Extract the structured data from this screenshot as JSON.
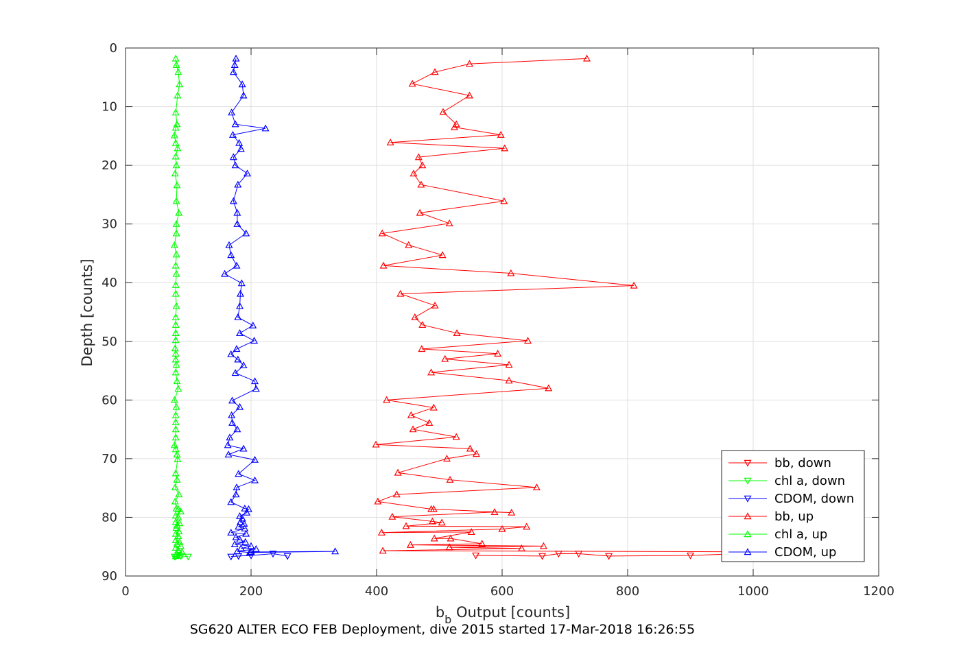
{
  "chart_data": {
    "type": "line",
    "caption": "SG620 ALTER ECO FEB Deployment, dive 2015 started 17-Mar-2018 16:26:55",
    "xlabel_main": "b",
    "xlabel_sub": "b",
    "xlabel_rest": " Output [counts]",
    "ylabel": "Depth [counts]",
    "xlim": [
      0,
      1200
    ],
    "ylim": [
      0,
      90
    ],
    "y_reversed": true,
    "grid": true,
    "legend_position": "bottom-right",
    "xticks": [
      "0",
      "200",
      "400",
      "600",
      "800",
      "1000",
      "1200"
    ],
    "yticks": [
      "0",
      "10",
      "20",
      "30",
      "40",
      "50",
      "60",
      "70",
      "80",
      "90"
    ],
    "series": [
      {
        "name": "bb, down",
        "color": "#ff0000",
        "marker": "triangle-down",
        "points": [
          [
            1050,
            85.9
          ],
          [
            900,
            86.5
          ],
          [
            770,
            86.6
          ],
          [
            722,
            86.2
          ],
          [
            690,
            86.2
          ],
          [
            664,
            86.6
          ],
          [
            558,
            86.5
          ]
        ]
      },
      {
        "name": "chl a, down",
        "color": "#00ff00",
        "marker": "triangle-down",
        "points": [
          [
            100,
            86.7
          ],
          [
            88,
            86.6
          ],
          [
            84,
            86.4
          ],
          [
            80,
            86.7
          ],
          [
            78,
            86.7
          ]
        ]
      },
      {
        "name": "CDOM, down",
        "color": "#0000ff",
        "marker": "triangle-down",
        "points": [
          [
            258,
            86.6
          ],
          [
            235,
            86.2
          ],
          [
            200,
            86.5
          ],
          [
            180,
            86.6
          ],
          [
            168,
            86.7
          ]
        ]
      },
      {
        "name": "bb, up",
        "color": "#ff0000",
        "marker": "triangle-up",
        "points": [
          [
            735,
            1.8
          ],
          [
            548,
            2.7
          ],
          [
            493,
            4.1
          ],
          [
            457,
            6.1
          ],
          [
            548,
            8.1
          ],
          [
            506,
            10.9
          ],
          [
            527,
            13.0
          ],
          [
            524,
            13.5
          ],
          [
            598,
            14.8
          ],
          [
            422,
            16.1
          ],
          [
            604,
            17.1
          ],
          [
            467,
            18.6
          ],
          [
            473,
            20.0
          ],
          [
            459,
            21.4
          ],
          [
            471,
            23.3
          ],
          [
            603,
            26.1
          ],
          [
            469,
            28.1
          ],
          [
            516,
            29.9
          ],
          [
            409,
            31.6
          ],
          [
            451,
            33.6
          ],
          [
            505,
            35.3
          ],
          [
            411,
            37.1
          ],
          [
            614,
            38.4
          ],
          [
            810,
            40.5
          ],
          [
            438,
            41.9
          ],
          [
            493,
            43.9
          ],
          [
            461,
            45.9
          ],
          [
            473,
            47.2
          ],
          [
            528,
            48.6
          ],
          [
            641,
            49.9
          ],
          [
            472,
            51.3
          ],
          [
            593,
            52.1
          ],
          [
            509,
            53.0
          ],
          [
            611,
            54.0
          ],
          [
            487,
            55.3
          ],
          [
            611,
            56.7
          ],
          [
            674,
            58.0
          ],
          [
            416,
            60.0
          ],
          [
            491,
            61.3
          ],
          [
            455,
            62.6
          ],
          [
            484,
            63.9
          ],
          [
            458,
            65.0
          ],
          [
            527,
            66.3
          ],
          [
            399,
            67.6
          ],
          [
            549,
            68.3
          ],
          [
            559,
            69.2
          ],
          [
            512,
            70.0
          ],
          [
            434,
            72.4
          ],
          [
            517,
            73.6
          ],
          [
            655,
            74.9
          ],
          [
            432,
            76.1
          ],
          [
            402,
            77.3
          ],
          [
            487,
            78.6
          ],
          [
            491,
            78.6
          ],
          [
            615,
            79.2
          ],
          [
            588,
            79.1
          ],
          [
            425,
            79.9
          ],
          [
            489,
            80.7
          ],
          [
            504,
            80.9
          ],
          [
            447,
            81.5
          ],
          [
            639,
            81.6
          ],
          [
            600,
            82.0
          ],
          [
            408,
            82.6
          ],
          [
            551,
            82.5
          ],
          [
            492,
            83.6
          ],
          [
            518,
            83.6
          ],
          [
            568,
            84.5
          ],
          [
            454,
            84.7
          ],
          [
            666,
            84.9
          ],
          [
            516,
            85.1
          ],
          [
            631,
            85.3
          ],
          [
            410,
            85.7
          ],
          [
            1050,
            85.9
          ]
        ]
      },
      {
        "name": "chl a, up",
        "color": "#00ff00",
        "marker": "triangle-up",
        "points": [
          [
            80,
            1.8
          ],
          [
            81,
            2.9
          ],
          [
            84,
            4.1
          ],
          [
            86,
            6.2
          ],
          [
            83,
            8.1
          ],
          [
            80,
            11.0
          ],
          [
            82,
            13.0
          ],
          [
            80,
            13.6
          ],
          [
            78,
            14.9
          ],
          [
            80,
            16.2
          ],
          [
            83,
            17.1
          ],
          [
            80,
            18.5
          ],
          [
            81,
            20.0
          ],
          [
            79,
            21.4
          ],
          [
            82,
            23.4
          ],
          [
            81,
            26.1
          ],
          [
            85,
            28.1
          ],
          [
            81,
            30.0
          ],
          [
            81,
            31.6
          ],
          [
            78,
            33.6
          ],
          [
            81,
            35.2
          ],
          [
            80,
            37.1
          ],
          [
            81,
            38.5
          ],
          [
            80,
            40.4
          ],
          [
            80,
            41.9
          ],
          [
            81,
            44.0
          ],
          [
            80,
            45.9
          ],
          [
            80,
            47.2
          ],
          [
            80,
            48.6
          ],
          [
            80,
            49.8
          ],
          [
            79,
            51.2
          ],
          [
            80,
            52.1
          ],
          [
            80,
            53.1
          ],
          [
            81,
            54.0
          ],
          [
            80,
            55.3
          ],
          [
            82,
            56.8
          ],
          [
            84,
            58.1
          ],
          [
            78,
            60.0
          ],
          [
            81,
            61.2
          ],
          [
            80,
            62.6
          ],
          [
            80,
            63.8
          ],
          [
            80,
            65.0
          ],
          [
            80,
            66.4
          ],
          [
            78,
            67.7
          ],
          [
            80,
            68.4
          ],
          [
            82,
            69.3
          ],
          [
            83,
            70.1
          ],
          [
            80,
            72.5
          ],
          [
            82,
            73.6
          ],
          [
            79,
            74.9
          ],
          [
            85,
            76.1
          ],
          [
            79,
            77.3
          ],
          [
            81,
            78.5
          ],
          [
            84,
            78.6
          ],
          [
            88,
            79.0
          ],
          [
            80,
            79.7
          ],
          [
            84,
            80.0
          ],
          [
            80,
            80.8
          ],
          [
            86,
            81.0
          ],
          [
            82,
            81.4
          ],
          [
            81,
            81.8
          ],
          [
            85,
            82.4
          ],
          [
            80,
            82.8
          ],
          [
            84,
            83.2
          ],
          [
            80,
            83.9
          ],
          [
            86,
            84.2
          ],
          [
            82,
            84.5
          ],
          [
            88,
            84.9
          ],
          [
            80,
            85.2
          ],
          [
            84,
            85.6
          ],
          [
            90,
            85.9
          ],
          [
            82,
            86.2
          ],
          [
            86,
            86.5
          ],
          [
            80,
            86.6
          ]
        ]
      },
      {
        "name": "CDOM, up",
        "color": "#0000ff",
        "marker": "triangle-up",
        "points": [
          [
            176,
            1.8
          ],
          [
            174,
            2.9
          ],
          [
            172,
            4.1
          ],
          [
            186,
            6.2
          ],
          [
            188,
            8.1
          ],
          [
            169,
            11.0
          ],
          [
            175,
            13.0
          ],
          [
            223,
            13.7
          ],
          [
            171,
            14.8
          ],
          [
            181,
            16.2
          ],
          [
            184,
            17.2
          ],
          [
            172,
            18.6
          ],
          [
            175,
            20.0
          ],
          [
            194,
            21.4
          ],
          [
            179,
            23.3
          ],
          [
            172,
            26.1
          ],
          [
            178,
            28.1
          ],
          [
            178,
            30.0
          ],
          [
            192,
            31.6
          ],
          [
            165,
            33.6
          ],
          [
            168,
            35.3
          ],
          [
            177,
            37.1
          ],
          [
            158,
            38.5
          ],
          [
            185,
            40.1
          ],
          [
            183,
            41.9
          ],
          [
            182,
            44.0
          ],
          [
            179,
            45.9
          ],
          [
            203,
            47.3
          ],
          [
            182,
            48.6
          ],
          [
            205,
            49.9
          ],
          [
            177,
            51.3
          ],
          [
            168,
            52.2
          ],
          [
            179,
            53.1
          ],
          [
            188,
            54.1
          ],
          [
            175,
            55.4
          ],
          [
            206,
            56.8
          ],
          [
            208,
            58.1
          ],
          [
            170,
            60.1
          ],
          [
            182,
            61.2
          ],
          [
            169,
            62.6
          ],
          [
            170,
            63.9
          ],
          [
            178,
            65.0
          ],
          [
            166,
            66.4
          ],
          [
            163,
            67.7
          ],
          [
            188,
            68.3
          ],
          [
            164,
            69.3
          ],
          [
            206,
            70.2
          ],
          [
            180,
            72.6
          ],
          [
            206,
            73.7
          ],
          [
            177,
            74.9
          ],
          [
            176,
            76.1
          ],
          [
            168,
            77.4
          ],
          [
            190,
            78.5
          ],
          [
            196,
            78.6
          ],
          [
            193,
            79.2
          ],
          [
            182,
            79.8
          ],
          [
            186,
            80.2
          ],
          [
            183,
            80.8
          ],
          [
            189,
            81.1
          ],
          [
            180,
            81.6
          ],
          [
            190,
            81.9
          ],
          [
            168,
            82.6
          ],
          [
            192,
            82.8
          ],
          [
            176,
            83.4
          ],
          [
            182,
            83.8
          ],
          [
            191,
            84.2
          ],
          [
            174,
            84.6
          ],
          [
            200,
            84.9
          ],
          [
            184,
            85.3
          ],
          [
            208,
            85.4
          ],
          [
            178,
            85.8
          ],
          [
            198,
            86.0
          ],
          [
            334,
            85.8
          ],
          [
            200,
            85.9
          ]
        ]
      }
    ]
  }
}
